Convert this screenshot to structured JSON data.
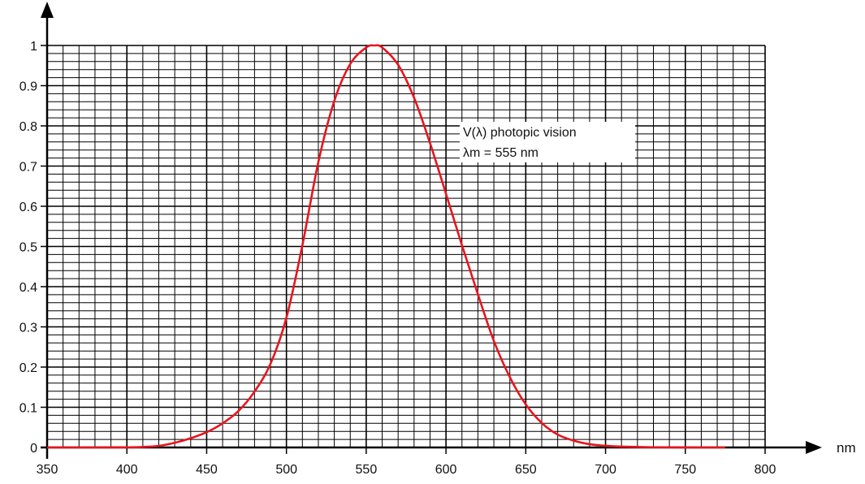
{
  "chart_data": {
    "type": "line",
    "xlabel": "nm",
    "ylabel": "",
    "xlim": [
      350,
      800
    ],
    "ylim": [
      0,
      1
    ],
    "x_ticks": [
      "350",
      "400",
      "450",
      "500",
      "550",
      "600",
      "650",
      "700",
      "750",
      "800"
    ],
    "y_ticks": [
      "0",
      "0.1",
      "0.2",
      "0.3",
      "0.4",
      "0.5",
      "0.6",
      "0.7",
      "0.8",
      "0.9",
      "1"
    ],
    "grid": true,
    "legend": {
      "placement": "top-right",
      "lines": [
        "V(λ) photopic vision",
        "λm = 555 nm"
      ]
    },
    "colors": {
      "curve": "#e8141e",
      "grid": "#000000"
    },
    "series": [
      {
        "name": "V(λ) photopic vision",
        "x": [
          350,
          380,
          400,
          410,
          420,
          430,
          440,
          450,
          460,
          470,
          480,
          490,
          500,
          510,
          520,
          530,
          540,
          550,
          555,
          560,
          570,
          580,
          590,
          600,
          610,
          620,
          630,
          640,
          650,
          660,
          670,
          680,
          690,
          700,
          710,
          730,
          775
        ],
        "y": [
          0,
          0,
          0.0004,
          0.0012,
          0.004,
          0.0116,
          0.023,
          0.038,
          0.06,
          0.091,
          0.139,
          0.208,
          0.323,
          0.503,
          0.71,
          0.862,
          0.954,
          0.995,
          1.0,
          0.995,
          0.952,
          0.87,
          0.757,
          0.631,
          0.503,
          0.381,
          0.265,
          0.175,
          0.107,
          0.061,
          0.032,
          0.017,
          0.0082,
          0.0041,
          0.0021,
          0.0005,
          0
        ]
      }
    ]
  }
}
